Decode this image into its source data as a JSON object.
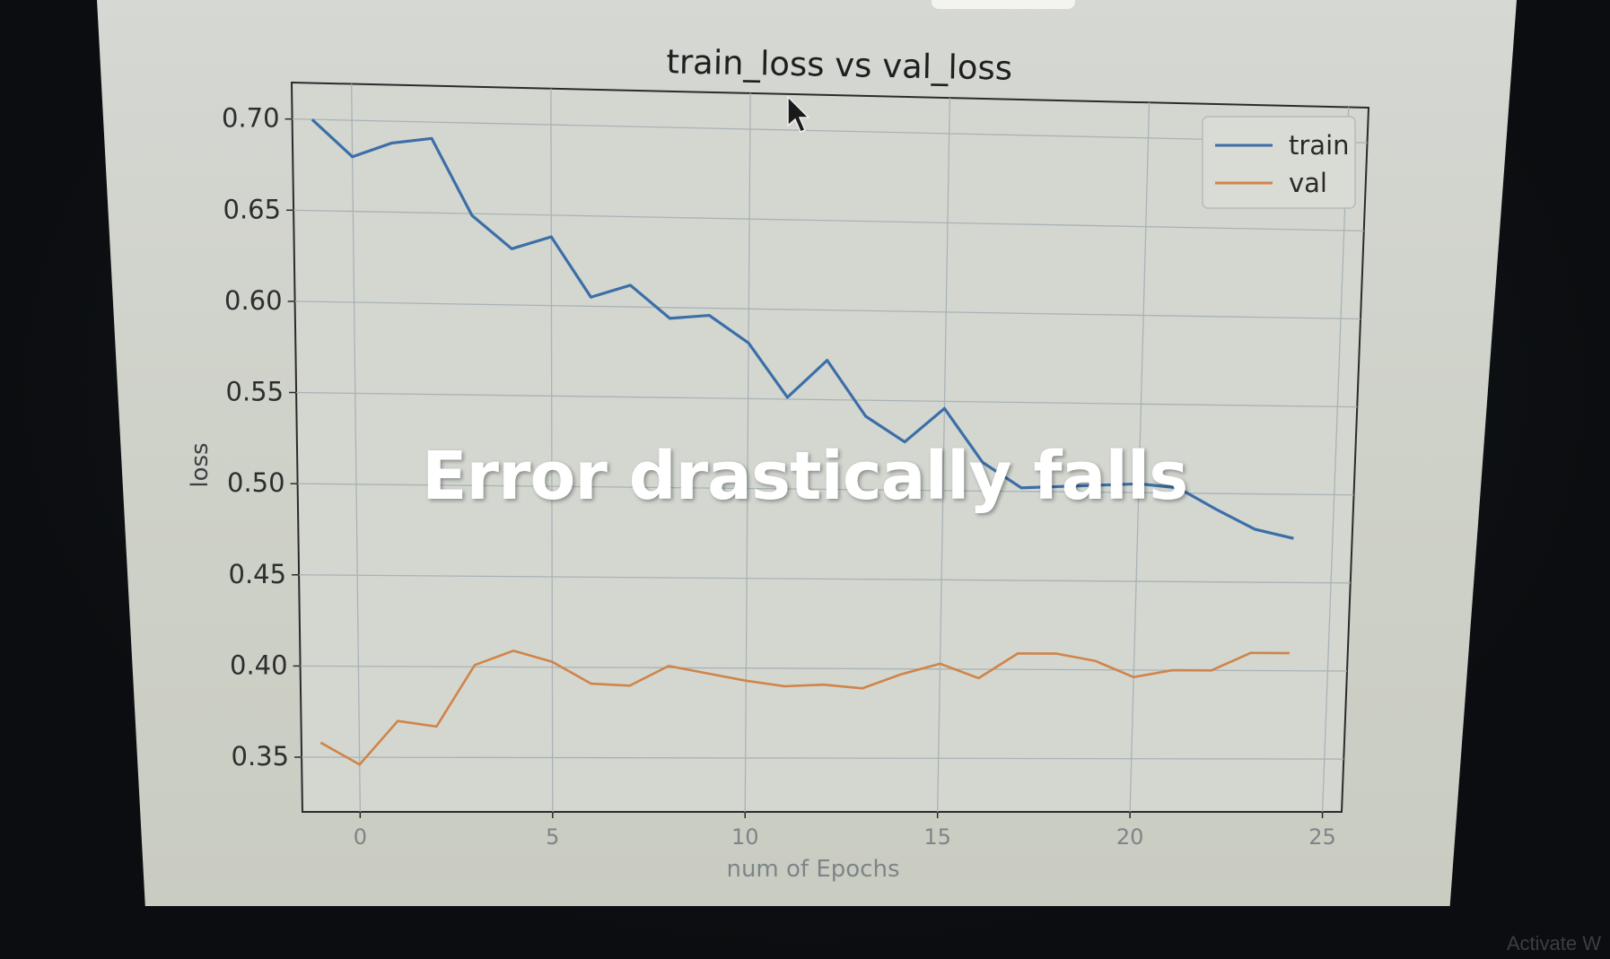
{
  "overlay_caption": "Error drastically falls",
  "watermark": "Activate W",
  "colors": {
    "train": "#3c6ea8",
    "val": "#d08449",
    "grid": "#a9b3b6",
    "axis": "#2b2b2b",
    "tick_text": "#2e2e2e"
  },
  "chart_data": {
    "type": "line",
    "title": "train_loss vs val_loss",
    "xlabel": "num of Epochs",
    "ylabel": "loss",
    "xlim": [
      -1.5,
      25.5
    ],
    "ylim": [
      0.32,
      0.72
    ],
    "xticks": [
      0,
      5,
      10,
      15,
      20,
      25
    ],
    "yticks": [
      0.35,
      0.4,
      0.45,
      0.5,
      0.55,
      0.6,
      0.65,
      0.7
    ],
    "ytick_labels": [
      "0.35",
      "0.40",
      "0.45",
      "0.50",
      "0.55",
      "0.60",
      "0.65",
      "0.70"
    ],
    "grid": true,
    "legend_position": "top-right",
    "x": [
      -1,
      0,
      1,
      2,
      3,
      4,
      5,
      6,
      7,
      8,
      9,
      10,
      11,
      12,
      13,
      14,
      15,
      16,
      17,
      18,
      19,
      20,
      21,
      22,
      23,
      24
    ],
    "series": [
      {
        "name": "train",
        "values": [
          0.7,
          0.68,
          0.688,
          0.691,
          0.649,
          0.631,
          0.638,
          0.605,
          0.612,
          0.594,
          0.596,
          0.581,
          0.551,
          0.572,
          0.541,
          0.527,
          0.546,
          0.516,
          0.502,
          0.503,
          0.504,
          0.505,
          0.503,
          0.491,
          0.48,
          0.475
        ]
      },
      {
        "name": "val",
        "values": [
          0.358,
          0.346,
          0.37,
          0.367,
          0.401,
          0.409,
          0.403,
          0.391,
          0.39,
          0.401,
          0.397,
          0.393,
          0.39,
          0.391,
          0.389,
          0.397,
          0.403,
          0.395,
          0.409,
          0.409,
          0.405,
          0.396,
          0.4,
          0.4,
          0.41,
          0.41
        ]
      }
    ]
  }
}
